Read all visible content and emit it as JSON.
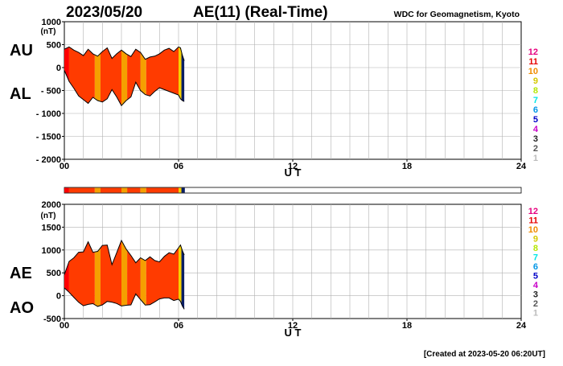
{
  "header": {
    "date": "2023/05/20",
    "title": "AE(11) (Real-Time)",
    "source": "WDC for Geomagnetism, Kyoto"
  },
  "footer": {
    "created": "[Created at 2023-05-20 06:20UT]"
  },
  "station_counts": {
    "labels": [
      "12",
      "11",
      "10",
      "9",
      "8",
      "7",
      "6",
      "5",
      "4",
      "3",
      "2",
      "1"
    ],
    "colors": [
      "#e6007e",
      "#e60000",
      "#f08c00",
      "#d4c800",
      "#b4e600",
      "#00e6e6",
      "#0096e6",
      "#0000c8",
      "#c800c8",
      "#222222",
      "#555555",
      "#bbbbbb"
    ]
  },
  "legend_bar": {
    "segments": [
      {
        "from": 0,
        "to": 0.25,
        "color": "#ff0000"
      },
      {
        "from": 0.25,
        "to": 1.6,
        "color": "#ff3b00"
      },
      {
        "from": 1.6,
        "to": 1.9,
        "color": "#f5a000"
      },
      {
        "from": 1.9,
        "to": 3.0,
        "color": "#ff3b00"
      },
      {
        "from": 3.0,
        "to": 3.3,
        "color": "#f5a000"
      },
      {
        "from": 3.3,
        "to": 4.0,
        "color": "#ff3b00"
      },
      {
        "from": 4.0,
        "to": 4.3,
        "color": "#f5a000"
      },
      {
        "from": 4.3,
        "to": 6.0,
        "color": "#ff3b00"
      },
      {
        "from": 6.0,
        "to": 6.15,
        "color": "#f5d000"
      },
      {
        "from": 6.15,
        "to": 6.33,
        "color": "#0a1e64"
      }
    ]
  },
  "chart_data": [
    {
      "type": "area",
      "title": "AU / AL",
      "panel_labels": [
        "AU",
        "AL"
      ],
      "unit_label": "(nT)",
      "ylim": [
        -2000,
        1000
      ],
      "yticks": [
        1000,
        500,
        0,
        -500,
        -1000,
        -1500,
        -2000
      ],
      "ytick_labels": [
        "1000",
        "500",
        "0",
        "- 500",
        "- 1000",
        "- 1500",
        "- 2000"
      ],
      "xlim": [
        0,
        24
      ],
      "xticks": [
        0,
        6,
        12,
        18,
        24
      ],
      "xtick_labels": [
        "00",
        "06",
        "12",
        "18",
        "24"
      ],
      "xlabel": "U T",
      "grid": true,
      "series": [
        {
          "name": "AU",
          "x": [
            0,
            0.25,
            0.5,
            0.75,
            1,
            1.25,
            1.5,
            1.75,
            2,
            2.25,
            2.5,
            2.75,
            3,
            3.25,
            3.5,
            3.75,
            4,
            4.25,
            4.5,
            4.75,
            5,
            5.25,
            5.5,
            5.75,
            6,
            6.1,
            6.2,
            6.3
          ],
          "values": [
            400,
            450,
            380,
            330,
            260,
            400,
            300,
            250,
            350,
            430,
            200,
            300,
            380,
            300,
            240,
            400,
            330,
            180,
            230,
            250,
            300,
            380,
            420,
            350,
            450,
            430,
            270,
            150
          ]
        },
        {
          "name": "AL",
          "x": [
            0,
            0.25,
            0.5,
            0.75,
            1,
            1.25,
            1.5,
            1.75,
            2,
            2.25,
            2.5,
            2.75,
            3,
            3.25,
            3.5,
            3.75,
            4,
            4.25,
            4.5,
            4.75,
            5,
            5.25,
            5.5,
            5.75,
            6,
            6.1,
            6.2,
            6.3
          ],
          "values": [
            -60,
            -300,
            -450,
            -620,
            -700,
            -780,
            -650,
            -720,
            -750,
            -680,
            -480,
            -640,
            -830,
            -720,
            -640,
            -320,
            -500,
            -590,
            -620,
            -520,
            -440,
            -480,
            -520,
            -560,
            -600,
            -680,
            -720,
            -740
          ]
        }
      ]
    },
    {
      "type": "area",
      "title": "AE / AO",
      "panel_labels": [
        "AE",
        "AO"
      ],
      "unit_label": "(nT)",
      "ylim": [
        -500,
        2000
      ],
      "yticks": [
        2000,
        1500,
        1000,
        500,
        0,
        -500
      ],
      "ytick_labels": [
        "2000",
        "1500",
        "1000",
        "500",
        "0",
        "-500"
      ],
      "xlim": [
        0,
        24
      ],
      "xticks": [
        0,
        6,
        12,
        18,
        24
      ],
      "xtick_labels": [
        "00",
        "06",
        "12",
        "18",
        "24"
      ],
      "xlabel": "U T",
      "grid": true,
      "series": [
        {
          "name": "AE",
          "x": [
            0,
            0.25,
            0.5,
            0.75,
            1,
            1.25,
            1.5,
            1.75,
            2,
            2.25,
            2.5,
            2.75,
            3,
            3.25,
            3.5,
            3.75,
            4,
            4.25,
            4.5,
            4.75,
            5,
            5.25,
            5.5,
            5.75,
            6,
            6.1,
            6.2,
            6.3
          ],
          "values": [
            460,
            750,
            830,
            950,
            960,
            1180,
            950,
            970,
            1100,
            1110,
            680,
            940,
            1210,
            1020,
            880,
            720,
            830,
            770,
            850,
            770,
            740,
            860,
            940,
            910,
            1050,
            1110,
            990,
            890
          ]
        },
        {
          "name": "AO",
          "x": [
            0,
            0.25,
            0.5,
            0.75,
            1,
            1.25,
            1.5,
            1.75,
            2,
            2.25,
            2.5,
            2.75,
            3,
            3.25,
            3.5,
            3.75,
            4,
            4.25,
            4.5,
            4.75,
            5,
            5.25,
            5.5,
            5.75,
            6,
            6.1,
            6.2,
            6.3
          ],
          "values": [
            170,
            75,
            -35,
            -145,
            -220,
            -190,
            -175,
            -235,
            -200,
            -125,
            -140,
            -170,
            -225,
            -210,
            -200,
            40,
            -85,
            -205,
            -195,
            -135,
            -70,
            -50,
            -50,
            -105,
            -75,
            -125,
            -225,
            -295
          ]
        }
      ]
    }
  ]
}
